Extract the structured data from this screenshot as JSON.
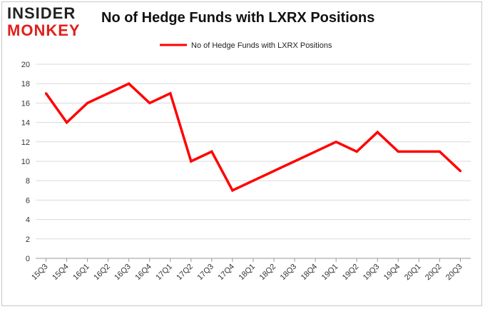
{
  "logo": {
    "top": "INSIDER",
    "bottom": "MONKEY"
  },
  "chart_data": {
    "type": "line",
    "title": "No of Hedge Funds with LXRX Positions",
    "xlabel": "",
    "ylabel": "",
    "categories": [
      "15Q3",
      "15Q4",
      "16Q1",
      "16Q2",
      "16Q3",
      "16Q4",
      "17Q1",
      "17Q2",
      "17Q3",
      "17Q4",
      "18Q1",
      "18Q2",
      "18Q3",
      "18Q4",
      "19Q1",
      "19Q2",
      "19Q3",
      "19Q4",
      "20Q1",
      "20Q2",
      "20Q3"
    ],
    "series": [
      {
        "name": "No of Hedge Funds with LXRX Positions",
        "color": "#ff0000",
        "values": [
          17,
          14,
          16,
          17,
          18,
          16,
          17,
          10,
          11,
          7,
          8,
          9,
          10,
          11,
          12,
          11,
          13,
          11,
          11,
          11,
          9
        ]
      }
    ],
    "ylim": [
      0,
      20
    ],
    "yticks": [
      0,
      2,
      4,
      6,
      8,
      10,
      12,
      14,
      16,
      18,
      20
    ],
    "grid": true,
    "legend": "top-center"
  }
}
